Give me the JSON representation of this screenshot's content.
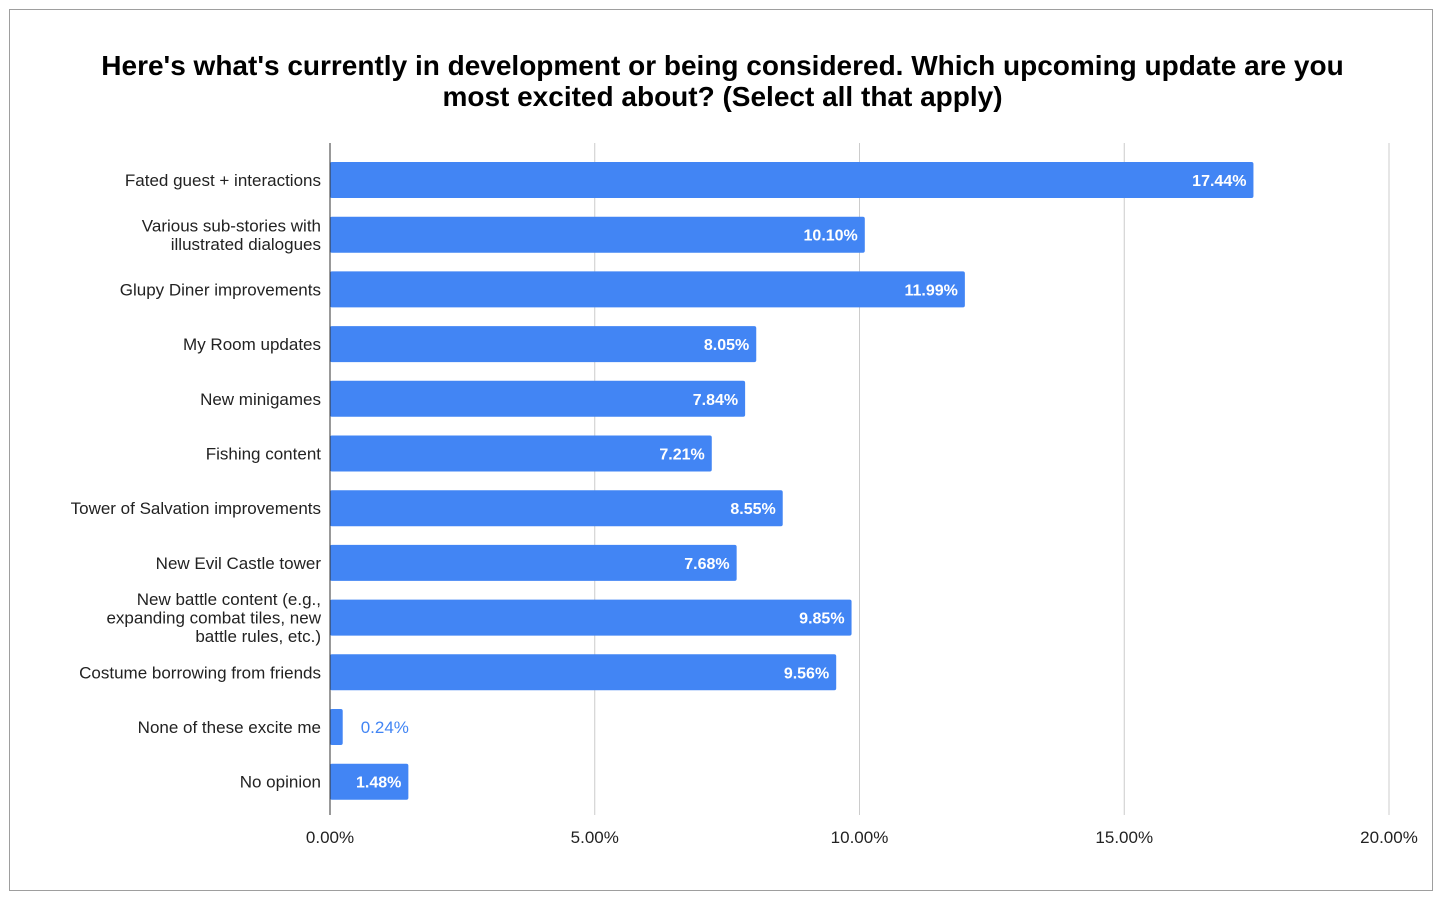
{
  "chart_data": {
    "type": "bar",
    "orientation": "horizontal",
    "title_lines": [
      "Here's what's currently in development or being considered. Which upcoming update are you",
      "most excited about? (Select all that apply)"
    ],
    "categories": [
      [
        "Fated guest + interactions"
      ],
      [
        "Various sub-stories with",
        "illustrated dialogues"
      ],
      [
        "Glupy Diner improvements"
      ],
      [
        "My Room updates"
      ],
      [
        "New minigames"
      ],
      [
        "Fishing content"
      ],
      [
        "Tower of Salvation improvements"
      ],
      [
        "New Evil Castle tower"
      ],
      [
        "New battle content (e.g.,",
        "expanding combat tiles, new",
        "battle rules, etc.)"
      ],
      [
        "Costume borrowing from friends"
      ],
      [
        "None of these excite me"
      ],
      [
        "No opinion"
      ]
    ],
    "values": [
      17.44,
      10.1,
      11.99,
      8.05,
      7.84,
      7.21,
      8.55,
      7.68,
      9.85,
      9.56,
      0.24,
      1.48
    ],
    "value_labels": [
      "17.44%",
      "10.10%",
      "11.99%",
      "8.05%",
      "7.84%",
      "7.21%",
      "8.55%",
      "7.68%",
      "9.85%",
      "9.56%",
      "0.24%",
      "1.48%"
    ],
    "xlim": [
      0,
      20
    ],
    "xticks": [
      0,
      5,
      10,
      15,
      20
    ],
    "xtick_labels": [
      "0.00%",
      "5.00%",
      "10.00%",
      "15.00%",
      "20.00%"
    ],
    "grid": true,
    "legend": "none",
    "bar_color": "#4285f4",
    "grid_color": "#cccccc"
  }
}
